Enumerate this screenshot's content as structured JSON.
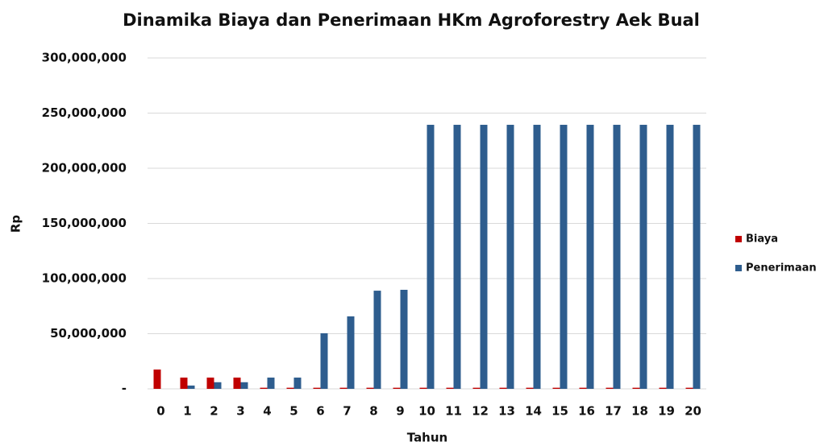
{
  "chart_data": {
    "type": "bar",
    "title": "Dinamika Biaya dan Penerimaan HKm Agroforestry Aek Bual",
    "x_label": "Tahun",
    "y_label": "Rp",
    "categories": [
      "0",
      "1",
      "2",
      "3",
      "4",
      "5",
      "6",
      "7",
      "8",
      "9",
      "10",
      "11",
      "12",
      "13",
      "14",
      "15",
      "16",
      "17",
      "18",
      "19",
      "20"
    ],
    "series": [
      {
        "name": "Biaya",
        "color": "#c00000",
        "values": [
          17500000,
          10200000,
          10200000,
          10200000,
          1000000,
          1000000,
          1000000,
          1000000,
          1000000,
          1000000,
          1000000,
          1000000,
          1000000,
          1000000,
          1000000,
          1000000,
          1000000,
          1000000,
          1000000,
          1000000,
          1000000
        ]
      },
      {
        "name": "Penerimaan",
        "color": "#2e5d8e",
        "values": [
          0,
          3000000,
          6000000,
          6000000,
          10200000,
          10200000,
          50400000,
          65700000,
          89000000,
          89800000,
          239400000,
          239400000,
          239400000,
          239400000,
          239400000,
          239400000,
          239400000,
          239400000,
          239400000,
          239400000,
          239400000
        ]
      }
    ],
    "ylim": [
      0,
      300000000
    ],
    "yticks": [
      {
        "value": 0,
        "label": "-"
      },
      {
        "value": 50000000,
        "label": "50,000,000"
      },
      {
        "value": 100000000,
        "label": "100,000,000"
      },
      {
        "value": 150000000,
        "label": "150,000,000"
      },
      {
        "value": 200000000,
        "label": "200,000,000"
      },
      {
        "value": 250000000,
        "label": "250,000,000"
      },
      {
        "value": 300000000,
        "label": "300,000,000"
      }
    ],
    "grid": true,
    "legend": "right"
  }
}
